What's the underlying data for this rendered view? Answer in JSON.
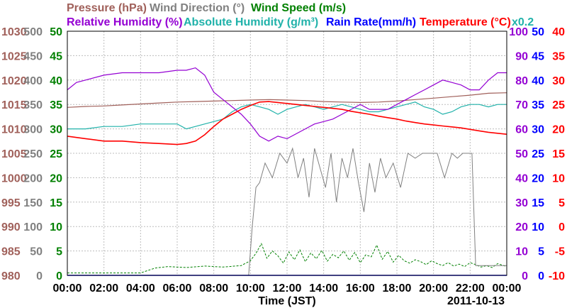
{
  "chart_data": {
    "type": "line",
    "date_label": "2011-10-13",
    "xlabel": "Time (JST)",
    "x_ticks": [
      "00:00",
      "02:00",
      "04:00",
      "06:00",
      "08:00",
      "10:00",
      "12:00",
      "14:00",
      "16:00",
      "18:00",
      "20:00",
      "22:00",
      "00:00"
    ],
    "grid": true,
    "colors": {
      "pressure": "#a0605a",
      "wind_direction": "#808080",
      "wind_speed": "#008000",
      "relative_humidity": "#9400d3",
      "absolute_humidity": "#20b2aa",
      "rain_rate": "#0000ff",
      "temperature": "#ff0000"
    },
    "header": {
      "pressure": "Pressure (hPa)",
      "wind_direction": "Wind Direction (°)",
      "wind_speed": "Wind Speed (m/s)",
      "relative_humidity": "Relative Humidity (%)",
      "absolute_humidity": "Absolute Humidity (g/m³)",
      "rain_rate": "Rain Rate(mm/h)",
      "temperature": "Temperature (°C)",
      "x02": "x0.2"
    },
    "axes": {
      "pressure": {
        "ticks": [
          "1030",
          "1025",
          "1020",
          "1015",
          "1010",
          "1005",
          "1000",
          "995",
          "990",
          "985",
          "980"
        ],
        "ylim": [
          980,
          1030
        ]
      },
      "wind_direction": {
        "ticks": [
          "500",
          "450",
          "400",
          "350",
          "300",
          "250",
          "200",
          "150",
          "100",
          "50",
          "0"
        ],
        "ylim": [
          0,
          500
        ]
      },
      "wind_speed": {
        "ticks": [
          "50",
          "45",
          "40",
          "35",
          "30",
          "25",
          "20",
          "15",
          "10",
          "5",
          "0"
        ],
        "ylim": [
          0,
          50
        ]
      },
      "relative_humidity": {
        "ticks": [
          "100",
          "90",
          "80",
          "70",
          "60",
          "50",
          "40",
          "30",
          "20",
          "10",
          "0"
        ],
        "ylim": [
          0,
          100
        ]
      },
      "rain_rate": {
        "ticks": [
          "50",
          "45",
          "40",
          "35",
          "30",
          "25",
          "20",
          "15",
          "10",
          "5",
          "0"
        ],
        "ylim": [
          0,
          50
        ]
      },
      "temperature": {
        "ticks": [
          "40",
          "35",
          "30",
          "25",
          "20",
          "15",
          "10",
          "5",
          "0",
          "-5",
          "-10"
        ],
        "ylim": [
          -10,
          40
        ]
      }
    },
    "series": [
      {
        "name": "Pressure (hPa)",
        "key": "pressure",
        "axis": "pressure",
        "x": [
          0,
          1,
          2,
          3,
          4,
          5,
          6,
          7,
          8,
          9,
          10,
          11,
          12,
          13,
          14,
          15,
          16,
          17,
          18,
          19,
          20,
          21,
          22,
          23,
          24
        ],
        "values": [
          1014.4,
          1014.6,
          1014.7,
          1014.9,
          1015.1,
          1015.3,
          1015.5,
          1015.6,
          1015.7,
          1015.8,
          1015.9,
          1016.0,
          1015.9,
          1015.8,
          1015.6,
          1015.5,
          1015.4,
          1015.5,
          1015.7,
          1016.0,
          1016.3,
          1016.6,
          1016.9,
          1017.3,
          1017.4
        ]
      },
      {
        "name": "Wind Direction (°)",
        "key": "wind_direction",
        "axis": "wind_direction",
        "x": [
          0,
          4.5,
          9.9,
          10.1,
          10.3,
          10.5,
          10.8,
          11.2,
          11.6,
          12.0,
          12.3,
          12.6,
          12.9,
          13.2,
          13.5,
          13.8,
          14.1,
          14.4,
          14.7,
          15.0,
          15.3,
          15.6,
          15.9,
          16.2,
          16.5,
          16.8,
          17.1,
          17.4,
          17.8,
          18.2,
          18.6,
          19.0,
          19.4,
          19.8,
          20.2,
          20.6,
          21.0,
          21.3,
          21.6,
          21.9,
          22.1,
          22.3,
          24
        ],
        "values": [
          0,
          0,
          0,
          100,
          180,
          190,
          230,
          200,
          250,
          230,
          260,
          200,
          240,
          160,
          260,
          220,
          180,
          250,
          150,
          240,
          200,
          260,
          190,
          130,
          230,
          170,
          240,
          200,
          230,
          180,
          250,
          240,
          250,
          250,
          250,
          200,
          250,
          240,
          250,
          250,
          250,
          20,
          20
        ]
      },
      {
        "name": "Wind Speed (m/s)",
        "key": "wind_speed",
        "axis": "wind_speed",
        "x": [
          0,
          2,
          4,
          4.8,
          5.5,
          6.5,
          7.5,
          8.5,
          9.5,
          10.0,
          10.3,
          10.6,
          10.9,
          11.2,
          11.5,
          11.8,
          12.1,
          12.4,
          12.7,
          13.0,
          13.3,
          13.6,
          13.9,
          14.2,
          14.5,
          14.8,
          15.1,
          15.4,
          15.7,
          16.0,
          16.3,
          16.6,
          16.9,
          17.2,
          17.5,
          17.8,
          18.1,
          18.4,
          18.7,
          19.0,
          19.3,
          19.6,
          19.9,
          20.2,
          20.5,
          20.8,
          21.1,
          21.4,
          21.7,
          22.0,
          22.3,
          22.6,
          22.9,
          23.2,
          23.5,
          24
        ],
        "values": [
          0.5,
          0.5,
          0.5,
          1.5,
          1.8,
          1.6,
          1.9,
          1.7,
          2.0,
          3.0,
          4.5,
          6.5,
          3.5,
          5.0,
          4.0,
          2.5,
          4.8,
          3.2,
          5.2,
          2.8,
          4.6,
          3.4,
          5.1,
          2.9,
          4.3,
          3.6,
          5.0,
          3.1,
          4.7,
          2.6,
          4.2,
          3.8,
          6.2,
          3.3,
          4.9,
          2.7,
          4.1,
          3.0,
          2.5,
          3.2,
          2.8,
          2.2,
          3.0,
          2.4,
          2.0,
          2.6,
          1.9,
          2.3,
          1.8,
          2.6,
          2.2,
          1.7,
          2.0,
          1.6,
          2.4,
          1.8
        ]
      },
      {
        "name": "Relative Humidity (%)",
        "key": "relative_humidity",
        "axis": "relative_humidity",
        "x": [
          0,
          0.5,
          1,
          2,
          3,
          4,
          5,
          6,
          6.5,
          7,
          7.5,
          8,
          8.5,
          9,
          9.5,
          10,
          10.5,
          11,
          11.5,
          12,
          12.5,
          13,
          13.5,
          14,
          14.5,
          15,
          15.5,
          16,
          16.5,
          17,
          17.5,
          18,
          18.5,
          19,
          19.5,
          20,
          20.5,
          21,
          21.5,
          22,
          22.5,
          23,
          23.5,
          24
        ],
        "values": [
          76,
          79,
          80,
          82,
          83,
          83,
          83,
          84,
          84,
          85,
          82,
          75,
          72,
          69,
          66,
          62,
          57,
          55,
          57,
          56,
          58,
          60,
          62,
          63,
          64,
          66,
          68,
          70,
          68,
          68,
          68,
          70,
          72,
          74,
          76,
          78,
          80,
          79,
          78,
          76,
          76,
          80,
          83,
          83
        ]
      },
      {
        "name": "Absolute Humidity (g/m³)",
        "key": "absolute_humidity",
        "axis": "relative_humidity",
        "x": [
          0,
          1,
          2,
          3,
          4,
          5,
          6,
          6.5,
          7,
          7.5,
          8,
          8.5,
          9,
          9.5,
          10,
          10.5,
          11,
          11.5,
          12,
          12.5,
          13,
          13.5,
          14,
          14.5,
          15,
          15.5,
          16,
          16.5,
          17,
          17.5,
          18,
          18.5,
          19,
          19.5,
          20,
          20.5,
          21,
          21.5,
          22,
          22.5,
          23,
          23.5,
          24
        ],
        "values": [
          60,
          60,
          61,
          61,
          62,
          62,
          62,
          60,
          61,
          62,
          63,
          64,
          67,
          69,
          70,
          69,
          68,
          66,
          68,
          69,
          70,
          69,
          68,
          69,
          70,
          69,
          68,
          67,
          67,
          68,
          69,
          70,
          71,
          69,
          68,
          66,
          67,
          69,
          70,
          70,
          69,
          70,
          70
        ]
      },
      {
        "name": "Rain Rate(mm/h)",
        "key": "rain_rate",
        "axis": "rain_rate",
        "x": [
          0,
          24
        ],
        "values": [
          0,
          0
        ]
      },
      {
        "name": "Temperature (°C)",
        "key": "temperature",
        "axis": "temperature",
        "x": [
          0,
          1,
          2,
          3,
          4,
          5,
          6,
          6.5,
          7,
          7.5,
          8,
          8.5,
          9,
          9.5,
          10,
          10.5,
          11,
          11.5,
          12,
          12.5,
          13,
          13.5,
          14,
          14.5,
          15,
          15.5,
          16,
          16.5,
          17,
          17.5,
          18,
          18.5,
          19,
          19.5,
          20,
          20.5,
          21,
          21.5,
          22,
          22.5,
          23,
          23.5,
          24
        ],
        "values": [
          18.5,
          18,
          17.5,
          17.5,
          17.2,
          17,
          16.8,
          17,
          17.5,
          18.8,
          20.5,
          22,
          23,
          24,
          24.8,
          25.5,
          25.6,
          25.4,
          25.2,
          25,
          24.8,
          24.6,
          24.4,
          24.2,
          24,
          23.6,
          23.3,
          23,
          22.6,
          22.3,
          22,
          21.6,
          21.3,
          21,
          20.8,
          20.6,
          20.4,
          20.2,
          19.9,
          19.6,
          19.3,
          19.1,
          18.9
        ]
      }
    ]
  }
}
